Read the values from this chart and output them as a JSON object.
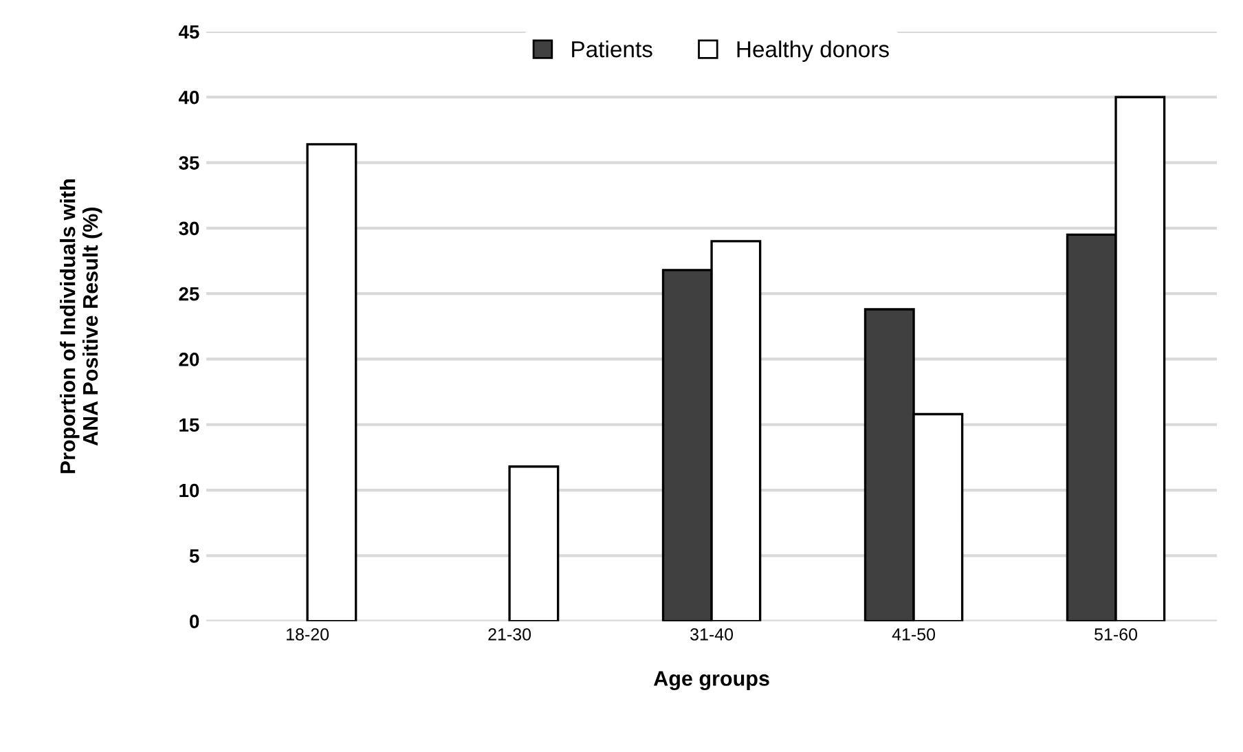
{
  "chart_data": {
    "type": "bar",
    "xlabel": "Age groups",
    "ylabel": "Proportion of Individuals with\nANA Positive Result (%)",
    "categories": [
      "18-20",
      "21-30",
      "31-40",
      "41-50",
      "51-60"
    ],
    "series": [
      {
        "name": "Patients",
        "color": "#404040",
        "values": [
          null,
          null,
          26.8,
          23.8,
          29.5
        ]
      },
      {
        "name": "Healthy donors",
        "color": "#ffffff",
        "values": [
          36.4,
          11.8,
          29.0,
          15.8,
          40.0
        ]
      }
    ],
    "ylim": [
      0,
      45
    ],
    "yticks": [
      0,
      5,
      10,
      15,
      20,
      25,
      30,
      35,
      40,
      45
    ],
    "grid": "y",
    "legend": "top"
  }
}
